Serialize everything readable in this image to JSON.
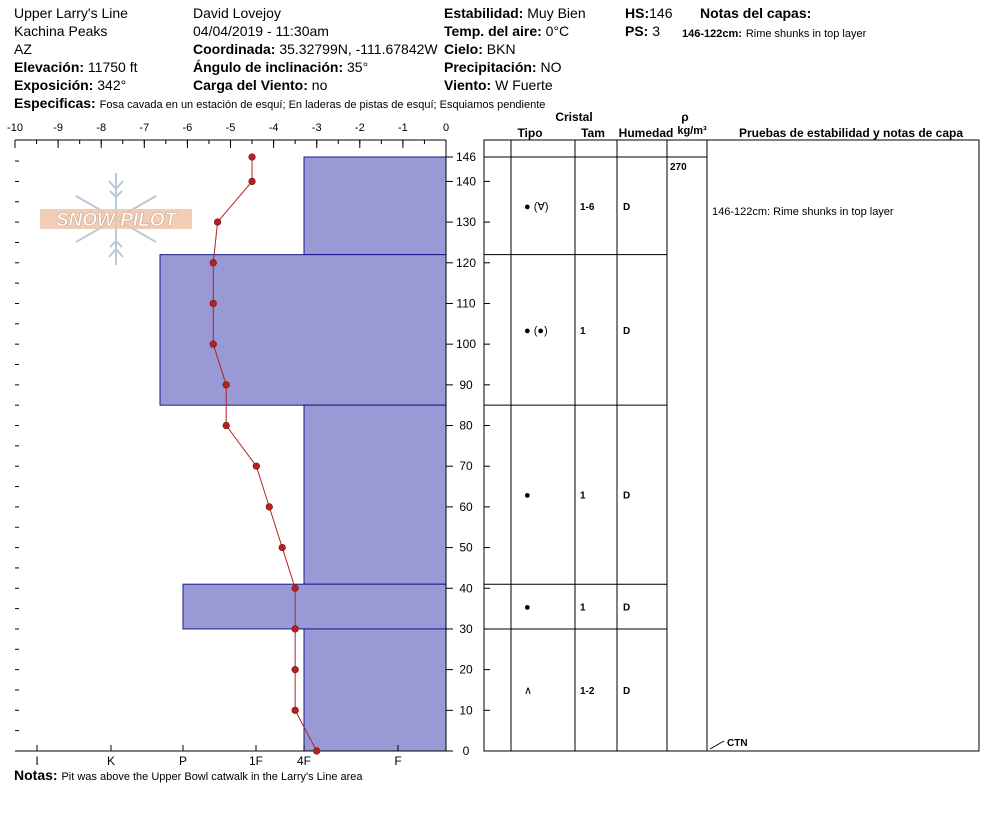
{
  "header": {
    "location": "Upper Larry's Line",
    "range": "Kachina Peaks",
    "state": "AZ",
    "elevation_label": "Elevación:",
    "elevation": "11750 ft",
    "aspect_label": "Exposición:",
    "aspect": "342°",
    "observer": "David Lovejoy",
    "datetime": "04/04/2019 - 11:30am",
    "coord_label": "Coordinada:",
    "coord": "35.32799N, -111.67842W",
    "slope_label": "Ángulo de inclinación:",
    "slope": "35°",
    "wind_load_label": "Carga del Viento:",
    "wind_load": "no",
    "stability_label": "Estabilidad:",
    "stability": "Muy Bien",
    "air_temp_label": "Temp. del aire:",
    "air_temp": "0°C",
    "sky_label": "Cielo:",
    "sky": "BKN",
    "precip_label": "Precipitación:",
    "precip": "NO",
    "wind_label": "Viento:",
    "wind": "W Fuerte",
    "hs_label": "HS:",
    "hs": "146",
    "ps_label": "PS:",
    "ps": "3",
    "layer_notes_label": "Notas del capas:",
    "layer_note_depth": "146-122cm:",
    "layer_note_text": "Rime shunks in top layer",
    "specifics_label": "Especificas:",
    "specifics": "Fosa cavada en un estación de esquí;  En laderas de pistas de esquí;  Esquiamos pendiente",
    "notes_label": "Notas:",
    "notes": "Pit was above the Upper Bowl catwalk in the Larry's Line area"
  },
  "logo_text": "SNOW PILOT",
  "table": {
    "crystal_label": "Cristal",
    "type_label": "Tipo",
    "size_label": "Tam",
    "moisture_label": "Humedad",
    "density_symbol": "ρ",
    "density_unit": "kg/m³",
    "stability_label": "Pruebas de estabilidad y notas de capa",
    "density_value": "270",
    "stability_note": "146-122cm: Rime shunks in top layer",
    "ctn_label": "CTN"
  },
  "colors": {
    "hardness_fill": "#9999d6",
    "hardness_stroke": "#1a1a8c",
    "temp_line": "#b22222"
  },
  "chart_data": {
    "type": "snow_profile",
    "temperature_axis": {
      "range": [
        -10,
        0
      ],
      "unit": "°C",
      "ticks": [
        "-10",
        "-9",
        "-8",
        "-7",
        "-6",
        "-5",
        "-4",
        "-3",
        "-2",
        "-1",
        "0"
      ]
    },
    "depth_axis": {
      "range": [
        0,
        146
      ],
      "unit": "cm",
      "ticks": [
        "0",
        "10",
        "20",
        "30",
        "40",
        "50",
        "60",
        "70",
        "80",
        "90",
        "100",
        "110",
        "120",
        "130",
        "140",
        "146"
      ]
    },
    "hardness_axis": {
      "ticks": [
        "I",
        "K",
        "P",
        "1F",
        "4F",
        "F"
      ]
    },
    "hardness_layers": [
      {
        "top": 146,
        "bottom": 122,
        "hardness": "4F"
      },
      {
        "top": 122,
        "bottom": 85,
        "hardness": "P+"
      },
      {
        "top": 85,
        "bottom": 41,
        "hardness": "4F"
      },
      {
        "top": 41,
        "bottom": 30,
        "hardness": "P"
      },
      {
        "top": 30,
        "bottom": 0,
        "hardness": "4F"
      }
    ],
    "temperature_profile": [
      {
        "depth": 146,
        "temp": -4.5
      },
      {
        "depth": 140,
        "temp": -4.5
      },
      {
        "depth": 130,
        "temp": -5.3
      },
      {
        "depth": 120,
        "temp": -5.4
      },
      {
        "depth": 110,
        "temp": -5.4
      },
      {
        "depth": 100,
        "temp": -5.4
      },
      {
        "depth": 90,
        "temp": -5.1
      },
      {
        "depth": 80,
        "temp": -5.1
      },
      {
        "depth": 70,
        "temp": -4.4
      },
      {
        "depth": 60,
        "temp": -4.1
      },
      {
        "depth": 50,
        "temp": -3.8
      },
      {
        "depth": 40,
        "temp": -3.5
      },
      {
        "depth": 30,
        "temp": -3.5
      },
      {
        "depth": 20,
        "temp": -3.5
      },
      {
        "depth": 10,
        "temp": -3.5
      },
      {
        "depth": 0,
        "temp": -3.0
      }
    ],
    "layers": [
      {
        "top": 146,
        "bottom": 122,
        "grain": "● (∀)",
        "size": "1-6",
        "moisture": "D"
      },
      {
        "top": 122,
        "bottom": 85,
        "grain": "● (●)",
        "size": "1",
        "moisture": "D"
      },
      {
        "top": 85,
        "bottom": 41,
        "grain": "●",
        "size": "1",
        "moisture": "D"
      },
      {
        "top": 41,
        "bottom": 30,
        "grain": "●",
        "size": "1",
        "moisture": "D"
      },
      {
        "top": 30,
        "bottom": 0,
        "grain": "∧",
        "size": "1-2",
        "moisture": "D"
      }
    ]
  }
}
